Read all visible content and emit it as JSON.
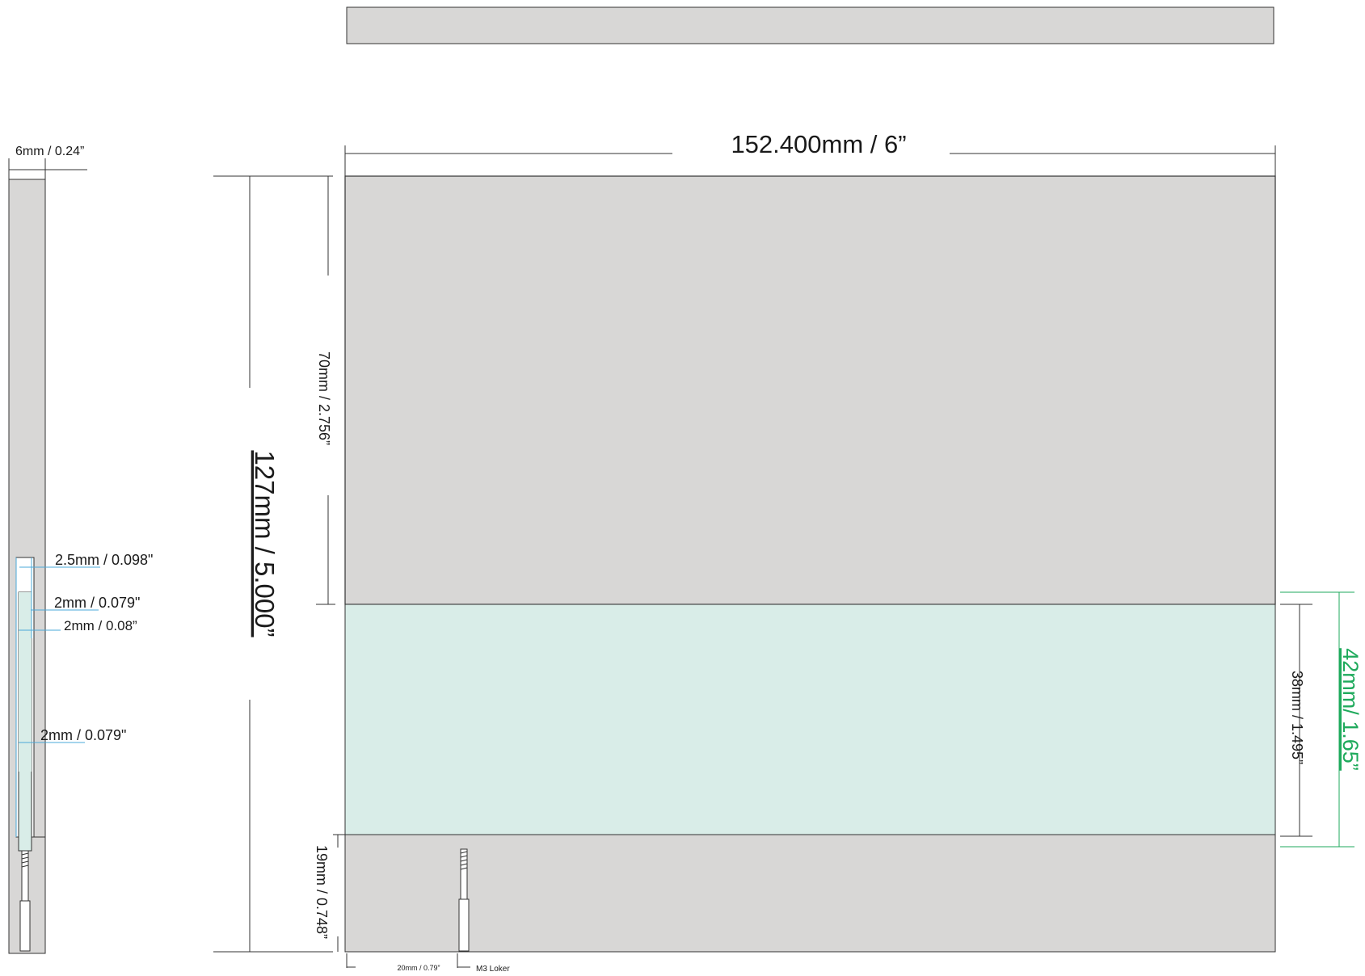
{
  "colors": {
    "panel_grey": "#d8d7d6",
    "glass": "#d9ede8",
    "outline": "#333333",
    "blue_dim": "#4aa8d8",
    "green_dim": "#1faa5c"
  },
  "labels": {
    "width": "152.400mm / 6”",
    "height": "127mm / 5.000”",
    "top_section": "70mm / 2.756”",
    "glass_section": "38mm / 1.495”",
    "glass_total": "42mm/ 1.65”",
    "bottom_section": "19mm / 0.748”",
    "thickness": "6mm / 0.24”",
    "side_a": "2.5mm / 0.098\"",
    "side_b": "2mm / 0.079\"",
    "side_c": "2mm / 0.08”",
    "side_d": "2mm / 0.079\"",
    "screw_offset": "20mm / 0.79”",
    "screw": "M3 Loker"
  }
}
